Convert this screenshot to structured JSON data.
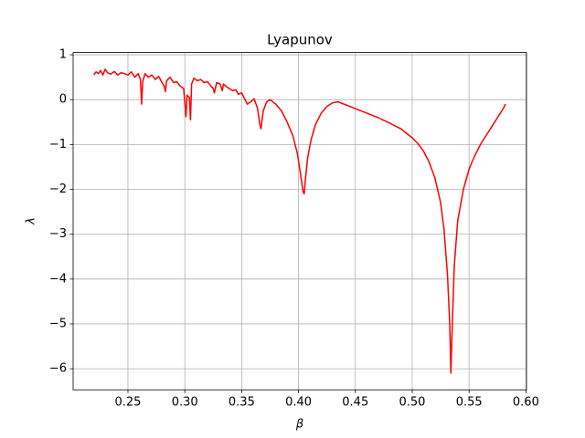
{
  "chart_data": {
    "type": "line",
    "title": "Lyapunov",
    "x_label": "β",
    "y_label": "λ",
    "color": "#ff0000",
    "grid": true,
    "x": [
      0.22,
      0.222,
      0.224,
      0.226,
      0.228,
      0.23,
      0.232,
      0.235,
      0.238,
      0.241,
      0.244,
      0.247,
      0.25,
      0.253,
      0.256,
      0.259,
      0.261,
      0.262,
      0.263,
      0.265,
      0.268,
      0.271,
      0.274,
      0.277,
      0.28,
      0.282,
      0.283,
      0.284,
      0.287,
      0.29,
      0.293,
      0.296,
      0.299,
      0.301,
      0.302,
      0.304,
      0.305,
      0.306,
      0.308,
      0.311,
      0.314,
      0.317,
      0.32,
      0.323,
      0.325,
      0.326,
      0.328,
      0.331,
      0.333,
      0.334,
      0.336,
      0.339,
      0.342,
      0.345,
      0.347,
      0.35,
      0.352,
      0.355,
      0.358,
      0.361,
      0.364,
      0.366,
      0.367,
      0.369,
      0.372,
      0.375,
      0.38,
      0.385,
      0.39,
      0.395,
      0.399,
      0.402,
      0.404,
      0.405,
      0.406,
      0.408,
      0.411,
      0.415,
      0.42,
      0.425,
      0.43,
      0.435,
      0.44,
      0.45,
      0.46,
      0.47,
      0.48,
      0.49,
      0.5,
      0.505,
      0.51,
      0.515,
      0.52,
      0.525,
      0.528,
      0.531,
      0.533,
      0.534,
      0.535,
      0.537,
      0.54,
      0.545,
      0.55,
      0.555,
      0.56,
      0.565,
      0.57,
      0.575,
      0.58,
      0.582
    ],
    "values": [
      0.55,
      0.62,
      0.58,
      0.65,
      0.55,
      0.68,
      0.6,
      0.57,
      0.63,
      0.55,
      0.6,
      0.58,
      0.55,
      0.62,
      0.5,
      0.58,
      0.45,
      -0.1,
      0.4,
      0.58,
      0.5,
      0.55,
      0.45,
      0.52,
      0.38,
      0.3,
      0.18,
      0.42,
      0.5,
      0.38,
      0.4,
      0.3,
      0.25,
      -0.38,
      0.1,
      0.05,
      -0.45,
      0.35,
      0.48,
      0.42,
      0.45,
      0.38,
      0.4,
      0.3,
      0.25,
      0.15,
      0.38,
      0.35,
      0.2,
      0.35,
      0.3,
      0.25,
      0.2,
      0.22,
      0.12,
      0.15,
      0.05,
      -0.1,
      -0.05,
      0.02,
      -0.2,
      -0.55,
      -0.65,
      -0.25,
      -0.05,
      0,
      -0.1,
      -0.25,
      -0.5,
      -0.8,
      -1.2,
      -1.7,
      -2.05,
      -2.1,
      -1.8,
      -1.3,
      -0.9,
      -0.55,
      -0.3,
      -0.15,
      -0.07,
      -0.05,
      -0.1,
      -0.2,
      -0.3,
      -0.4,
      -0.52,
      -0.65,
      -0.85,
      -0.98,
      -1.15,
      -1.4,
      -1.75,
      -2.3,
      -2.9,
      -3.9,
      -5.0,
      -6.1,
      -5.2,
      -3.7,
      -2.7,
      -2.0,
      -1.55,
      -1.25,
      -1.0,
      -0.8,
      -0.6,
      -0.4,
      -0.2,
      -0.1
    ],
    "xlim": [
      0.2018,
      0.6005
    ],
    "ylim": [
      -6.47,
      1.05
    ],
    "xticks": [
      0.25,
      {
        "value": 0.3,
        "label": "0.30"
      },
      0.35,
      {
        "value": 0.4,
        "label": "0.40"
      },
      0.45,
      {
        "value": 0.5,
        "label": "0.50"
      },
      0.55,
      {
        "value": 0.6,
        "label": "0.60"
      }
    ],
    "yticks": [
      {
        "value": -6,
        "label": "−6"
      },
      {
        "value": -5,
        "label": "−5"
      },
      {
        "value": -4,
        "label": "−4"
      },
      {
        "value": -3,
        "label": "−3"
      },
      {
        "value": -2,
        "label": "−2"
      },
      {
        "value": -1,
        "label": "−1"
      },
      0,
      1
    ]
  }
}
